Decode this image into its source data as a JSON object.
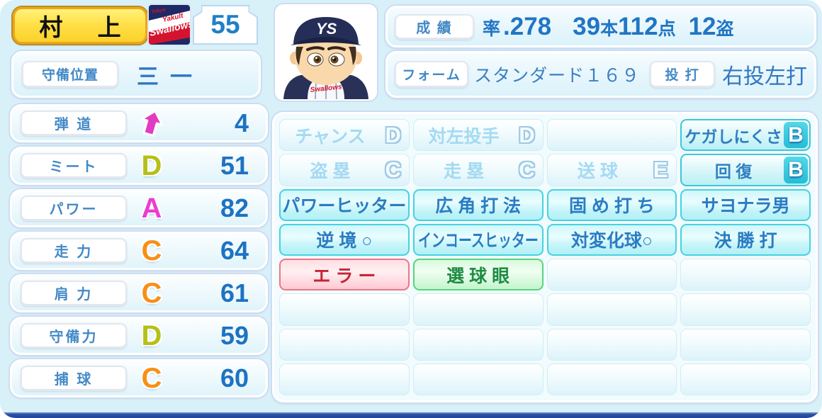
{
  "player": {
    "name": "村 上",
    "number": "55",
    "team": "Tokyo Yakult Swallows",
    "logo": {
      "tokyo": "Tokyo",
      "yakult": "Yakult",
      "swallows": "Swallows"
    },
    "jersey_script": "Swallows",
    "cap_logo": "YS"
  },
  "position": {
    "label": "守備位置",
    "value": "三一"
  },
  "record": {
    "label": "成 績",
    "avg_label": "率",
    "avg": ".278",
    "hr": "39",
    "hr_unit": "本",
    "rbi": "112",
    "rbi_unit": "点",
    "sb": "12",
    "sb_unit": "盗"
  },
  "form": {
    "label": "フォーム",
    "value": "スタンダード１６９",
    "throw_bat_label": "投 打",
    "throw_bat": "右投左打"
  },
  "stats": {
    "rows": [
      {
        "label": "弾 道",
        "arrow": true,
        "value": "4"
      },
      {
        "label": "ミート",
        "grade": "D",
        "grade_color": "#b5c016",
        "value": "51"
      },
      {
        "label": "パワー",
        "grade": "A",
        "grade_color": "#e93fd0",
        "value": "82"
      },
      {
        "label": "走 力",
        "grade": "C",
        "grade_color": "#f78f18",
        "value": "64"
      },
      {
        "label": "肩 力",
        "grade": "C",
        "grade_color": "#f78f18",
        "value": "61"
      },
      {
        "label": "守備力",
        "grade": "D",
        "grade_color": "#b5c016",
        "value": "59"
      },
      {
        "label": "捕 球",
        "grade": "C",
        "grade_color": "#f78f18",
        "value": "60"
      }
    ]
  },
  "abilities": {
    "rows": [
      [
        {
          "type": "faded",
          "label": "チャンス",
          "grade": "D"
        },
        {
          "type": "faded",
          "label": "対左投手",
          "grade": "D"
        },
        {
          "type": "empty"
        },
        {
          "type": "highlight",
          "label": "ケガしにくさ",
          "grade": "B"
        }
      ],
      [
        {
          "type": "faded",
          "label": "盗 塁",
          "grade": "C"
        },
        {
          "type": "faded",
          "label": "走 塁",
          "grade": "C"
        },
        {
          "type": "faded",
          "label": "送 球",
          "grade": "E"
        },
        {
          "type": "highlight",
          "label": "回 復",
          "grade": "B"
        }
      ],
      [
        {
          "type": "cyan",
          "label": "パワーヒッター"
        },
        {
          "type": "cyan",
          "label": "広 角 打 法"
        },
        {
          "type": "cyan",
          "label": "固 め 打 ち"
        },
        {
          "type": "cyan",
          "label": "サヨナラ男"
        }
      ],
      [
        {
          "type": "cyan",
          "label": "逆 境 ○"
        },
        {
          "type": "cyan",
          "label": "インコースヒッター",
          "narrow": true
        },
        {
          "type": "cyan",
          "label": "対変化球○"
        },
        {
          "type": "cyan",
          "label": "決 勝 打"
        }
      ],
      [
        {
          "type": "red",
          "label": "エ ラ ー"
        },
        {
          "type": "green",
          "label": "選 球 眼"
        },
        {
          "type": "empty"
        },
        {
          "type": "empty"
        }
      ],
      [
        {
          "type": "empty"
        },
        {
          "type": "empty"
        },
        {
          "type": "empty"
        },
        {
          "type": "empty"
        }
      ],
      [
        {
          "type": "empty"
        },
        {
          "type": "empty"
        },
        {
          "type": "empty"
        },
        {
          "type": "empty"
        }
      ],
      [
        {
          "type": "empty"
        },
        {
          "type": "empty"
        },
        {
          "type": "empty"
        },
        {
          "type": "empty"
        }
      ]
    ]
  },
  "colors": {
    "card_bg": "#d8f0f8",
    "accent_blue": "#2176c4",
    "label_blue": "#4289c7",
    "grade_a": "#e93fd0",
    "grade_c": "#f78f18",
    "grade_d": "#b5c016",
    "highlight_cyan": "#27bcd4",
    "bad_red": "#c22738",
    "good_green": "#1f8c44",
    "arrow_pink": "#e23cc3",
    "bottom_bar": "#24459a"
  }
}
